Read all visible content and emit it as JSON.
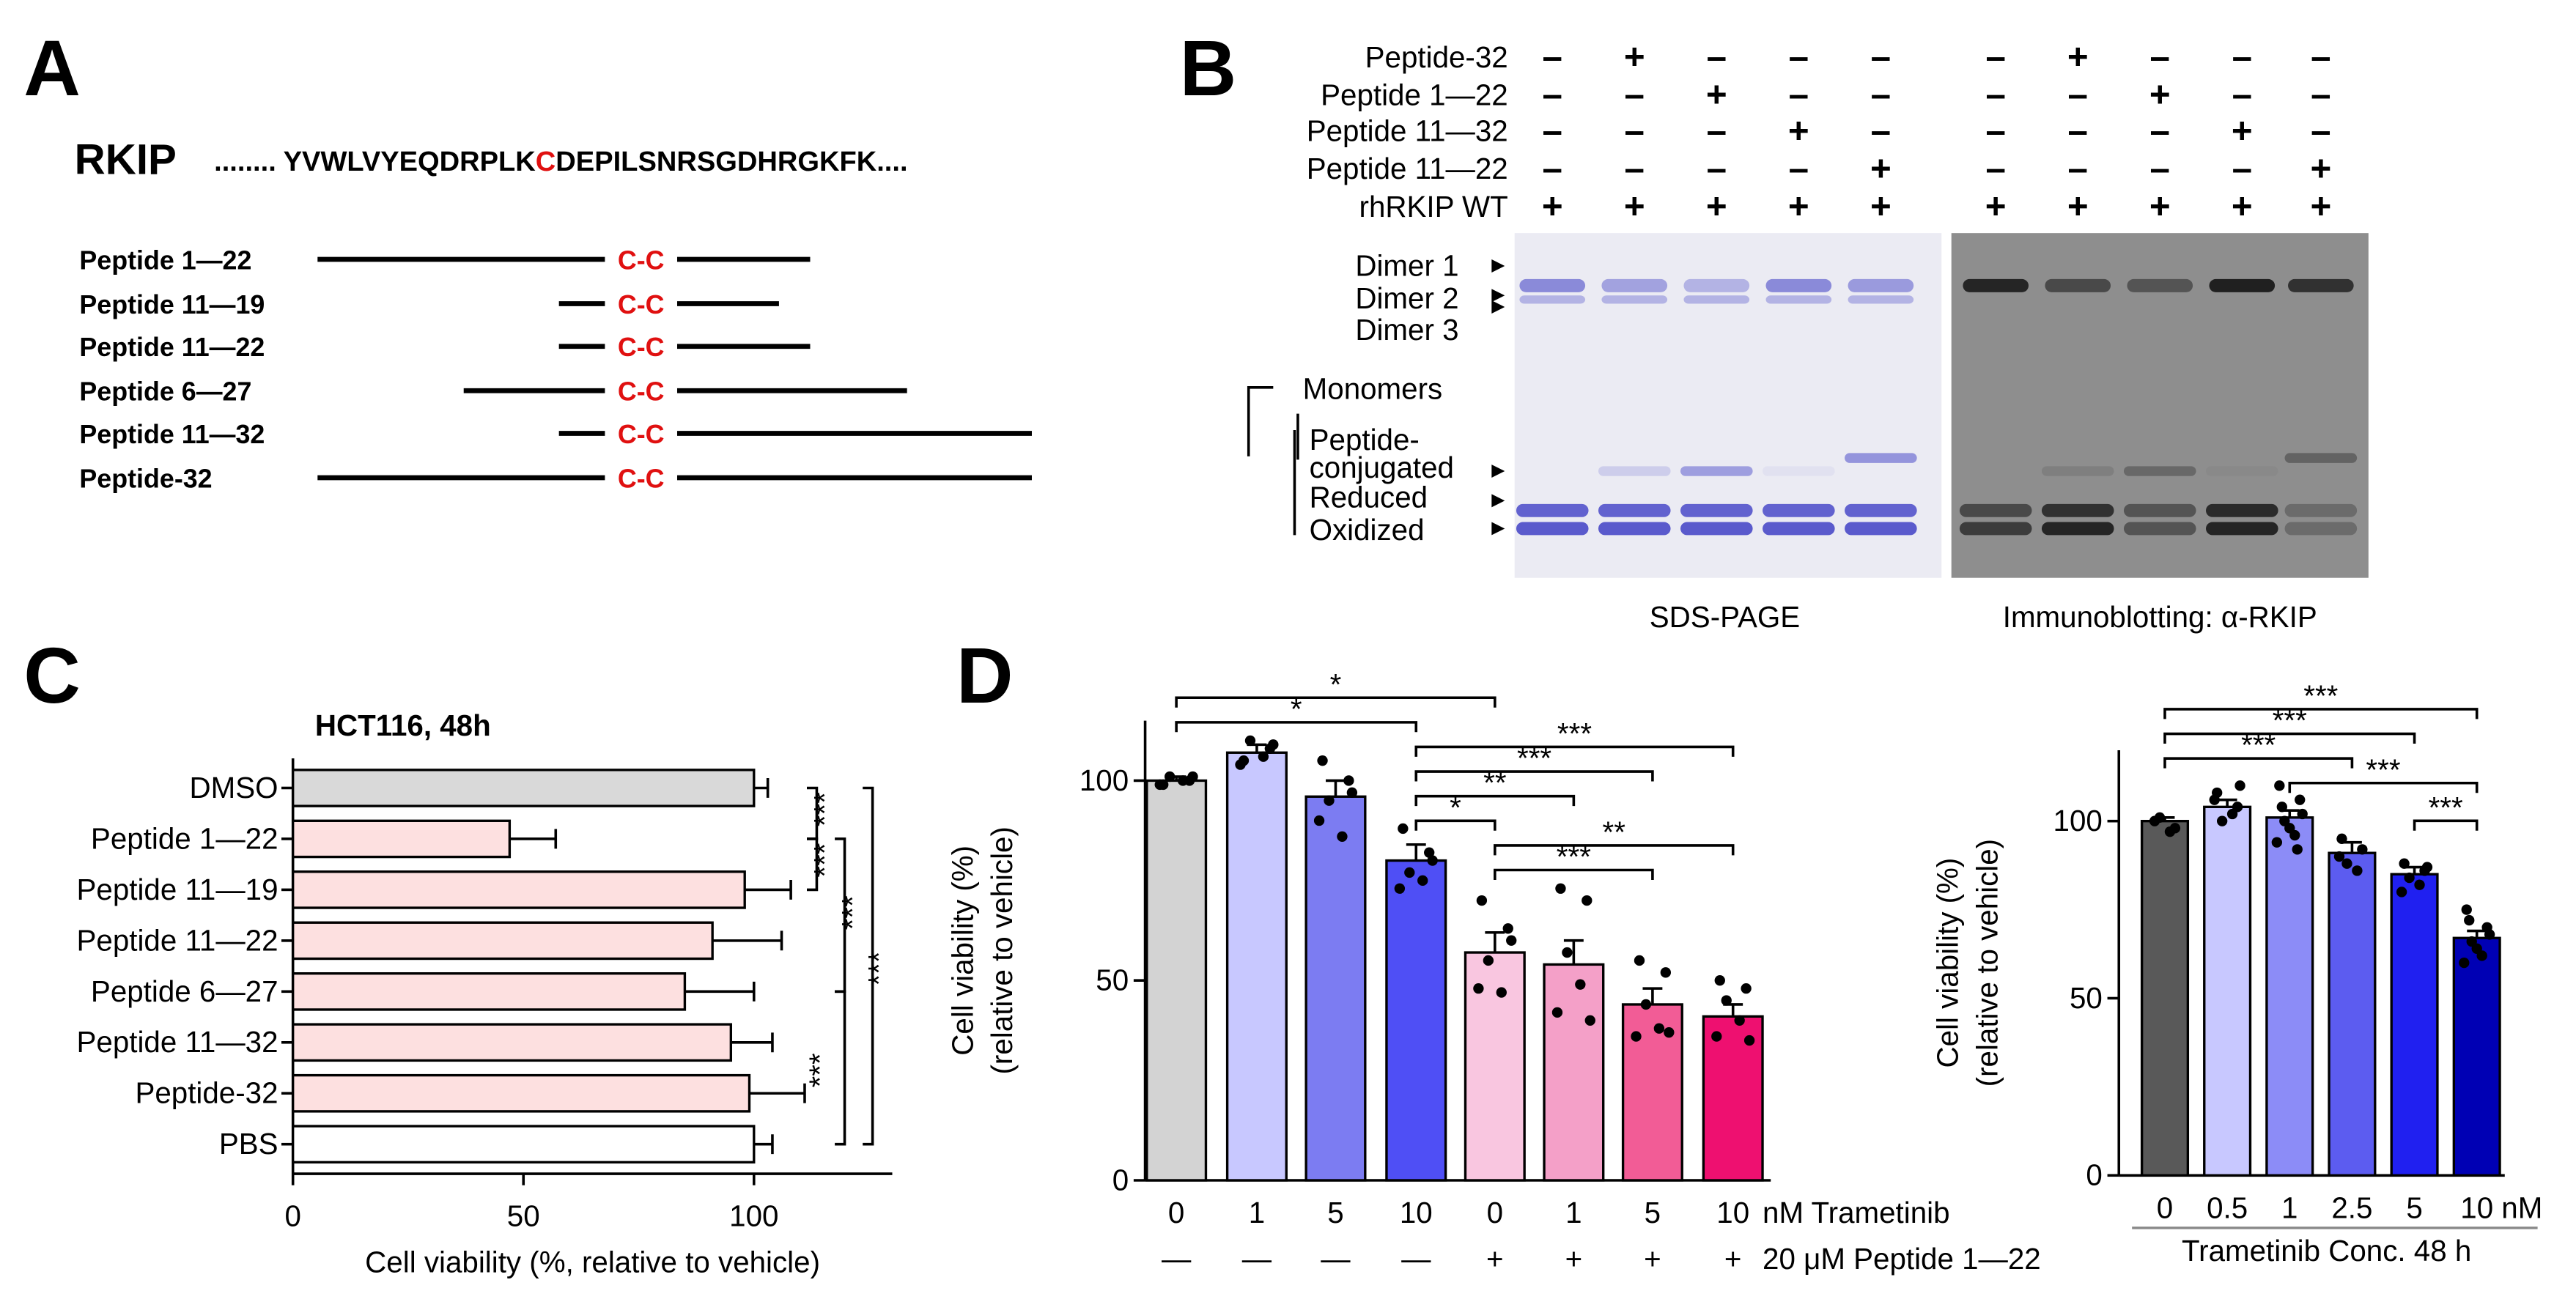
{
  "panel_labels": [
    "A",
    "B",
    "C",
    "D"
  ],
  "panel_a": {
    "protein": "RKIP",
    "sequence": [
      "........ YVWLVYEQDRPLK",
      "C",
      "DEPILSNRSGDHRGKFK...."
    ],
    "peptides": [
      {
        "label": "Peptide 1—22",
        "link": "C-C"
      },
      {
        "label": "Peptide 11—19",
        "link": "C-C"
      },
      {
        "label": "Peptide 11—22",
        "link": "C-C"
      },
      {
        "label": "Peptide 6—27",
        "link": "C-C"
      },
      {
        "label": "Peptide 11—32",
        "link": "C-C"
      },
      {
        "label": "Peptide-32",
        "link": "C-C"
      }
    ]
  },
  "panel_b": {
    "rows": [
      {
        "label": "Peptide-32",
        "signs": [
          "–",
          "+",
          "–",
          "–",
          "–",
          "–",
          "+",
          "–",
          "–",
          "–"
        ]
      },
      {
        "label": "Peptide 1—22",
        "signs": [
          "–",
          "–",
          "+",
          "–",
          "–",
          "–",
          "–",
          "+",
          "–",
          "–"
        ]
      },
      {
        "label": "Peptide 11—32",
        "signs": [
          "–",
          "–",
          "–",
          "+",
          "–",
          "–",
          "–",
          "–",
          "+",
          "–"
        ]
      },
      {
        "label": "Peptide 11—22",
        "signs": [
          "–",
          "–",
          "–",
          "–",
          "+",
          "–",
          "–",
          "–",
          "–",
          "+"
        ]
      },
      {
        "label": "rhRKIP WT",
        "signs": [
          "+",
          "+",
          "+",
          "+",
          "+",
          "+",
          "+",
          "+",
          "+",
          "+"
        ]
      }
    ],
    "band_labels": [
      "Dimer 1",
      "Dimer 2",
      "Dimer 3",
      "Monomers",
      "Peptide-",
      "conjugated",
      "Reduced",
      "Oxidized"
    ],
    "captions": [
      "SDS-PAGE",
      "Immunoblotting: α-RKIP"
    ]
  },
  "chart_data": [
    {
      "type": "bar",
      "orientation": "horizontal",
      "title": "HCT116, 48h",
      "categories": [
        "DMSO",
        "Peptide 1—22",
        "Peptide 11—19",
        "Peptide 11—22",
        "Peptide 6—27",
        "Peptide 11—32",
        "Peptide-32",
        "PBS"
      ],
      "values": [
        100,
        47,
        98,
        91,
        85,
        95,
        99,
        100
      ],
      "errors": [
        3,
        10,
        10,
        15,
        15,
        9,
        12,
        4
      ],
      "colors": [
        "#d9d9d9",
        "#fde0e0",
        "#fde0e0",
        "#fde0e0",
        "#fde0e0",
        "#fde0e0",
        "#fde0e0",
        "#ffffff"
      ],
      "xlim": [
        0,
        130
      ],
      "xticks": [
        0,
        50,
        100
      ],
      "xlabel": "Cell viability (%, relative to vehicle)",
      "annotations": [
        "***",
        "***",
        "***",
        "***",
        "***"
      ]
    },
    {
      "type": "bar",
      "categories": [
        "0",
        "1",
        "5",
        "10",
        "0",
        "1",
        "5",
        "10"
      ],
      "categories2": [
        "—",
        "—",
        "—",
        "—",
        "+",
        "+",
        "+",
        "+"
      ],
      "xlabel": "nM Trametinib",
      "xlabel2": "20 μM Peptide 1—22",
      "values": [
        100,
        107,
        96,
        80,
        57,
        54,
        44,
        41
      ],
      "errors": [
        1,
        2,
        4,
        4,
        5,
        6,
        4,
        3
      ],
      "points": [
        [
          99,
          100,
          101,
          100,
          99,
          101
        ],
        [
          105,
          108,
          110,
          106,
          104,
          109
        ],
        [
          105,
          100,
          95,
          86,
          90,
          97
        ],
        [
          88,
          82,
          77,
          75,
          73,
          80
        ],
        [
          70,
          63,
          55,
          47,
          48,
          60
        ],
        [
          73,
          70,
          57,
          49,
          42,
          40
        ],
        [
          55,
          52,
          44,
          38,
          36,
          37
        ],
        [
          50,
          48,
          45,
          40,
          36,
          35
        ]
      ],
      "colors": [
        "#d3d3d3",
        "#c8c8ff",
        "#7c7cf2",
        "#4f4ff5",
        "#f9c6e0",
        "#f4a0c8",
        "#f25c96",
        "#ee1070"
      ],
      "ylim": [
        0,
        115
      ],
      "yticks": [
        0,
        50,
        100
      ],
      "ylabel": [
        "Cell viability (%)",
        "(relative to vehicle)"
      ],
      "annotations": [
        "*",
        "*",
        "***",
        "***",
        "**",
        "*",
        "**",
        "***"
      ]
    },
    {
      "type": "bar",
      "categories": [
        "0",
        "0.5",
        "1",
        "2.5",
        "5",
        "10"
      ],
      "xlabel": "nM",
      "caption": "Trametinib Conc. 48 h",
      "values": [
        100,
        104,
        101,
        91,
        85,
        67
      ],
      "errors": [
        1,
        2,
        2,
        3,
        2,
        2
      ],
      "points": [
        [
          100,
          98,
          101,
          97
        ],
        [
          108,
          104,
          100,
          102,
          106,
          110
        ],
        [
          110,
          106,
          100,
          96,
          94,
          102,
          98,
          104,
          92
        ],
        [
          95,
          92,
          88,
          86,
          90
        ],
        [
          88,
          86,
          84,
          82,
          80,
          87
        ],
        [
          75,
          70,
          66,
          62,
          60,
          68,
          64,
          72
        ]
      ],
      "colors": [
        "#595959",
        "#c8c8ff",
        "#8c8cf7",
        "#5c5cf0",
        "#2020f0",
        "#0000b4"
      ],
      "ylim": [
        0,
        120
      ],
      "yticks": [
        0,
        50,
        100
      ],
      "ylabel": [
        "Cell viability (%)",
        "(relative to vehicle)"
      ],
      "annotations": [
        "***",
        "***",
        "***",
        "***",
        "***"
      ]
    }
  ]
}
